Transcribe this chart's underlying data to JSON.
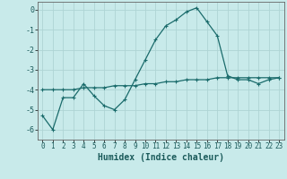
{
  "xlabel": "Humidex (Indice chaleur)",
  "background_color": "#c8eaea",
  "line_color": "#1a6b6b",
  "grid_color": "#aed4d4",
  "xlim": [
    -0.5,
    23.5
  ],
  "ylim": [
    -6.5,
    0.4
  ],
  "xticks": [
    0,
    1,
    2,
    3,
    4,
    5,
    6,
    7,
    8,
    9,
    10,
    11,
    12,
    13,
    14,
    15,
    16,
    17,
    18,
    19,
    20,
    21,
    22,
    23
  ],
  "yticks": [
    0,
    -1,
    -2,
    -3,
    -4,
    -5,
    -6
  ],
  "line1_x": [
    0,
    1,
    2,
    3,
    4,
    5,
    6,
    7,
    8,
    9,
    10,
    11,
    12,
    13,
    14,
    15,
    16,
    17,
    18,
    19,
    20,
    21,
    22,
    23
  ],
  "line1_y": [
    -5.3,
    -6.0,
    -4.4,
    -4.4,
    -3.7,
    -4.3,
    -4.8,
    -5.0,
    -4.5,
    -3.5,
    -2.5,
    -1.5,
    -0.8,
    -0.5,
    -0.1,
    0.1,
    -0.6,
    -1.3,
    -3.3,
    -3.5,
    -3.5,
    -3.7,
    -3.5,
    -3.4
  ],
  "line2_x": [
    0,
    1,
    2,
    3,
    4,
    5,
    6,
    7,
    8,
    9,
    10,
    11,
    12,
    13,
    14,
    15,
    16,
    17,
    18,
    19,
    20,
    21,
    22,
    23
  ],
  "line2_y": [
    -4.0,
    -4.0,
    -4.0,
    -4.0,
    -3.9,
    -3.9,
    -3.9,
    -3.8,
    -3.8,
    -3.8,
    -3.7,
    -3.7,
    -3.6,
    -3.6,
    -3.5,
    -3.5,
    -3.5,
    -3.4,
    -3.4,
    -3.4,
    -3.4,
    -3.4,
    -3.4,
    -3.4
  ],
  "tick_fontsize": 5.5,
  "xlabel_fontsize": 7.0,
  "spine_color": "#666666"
}
